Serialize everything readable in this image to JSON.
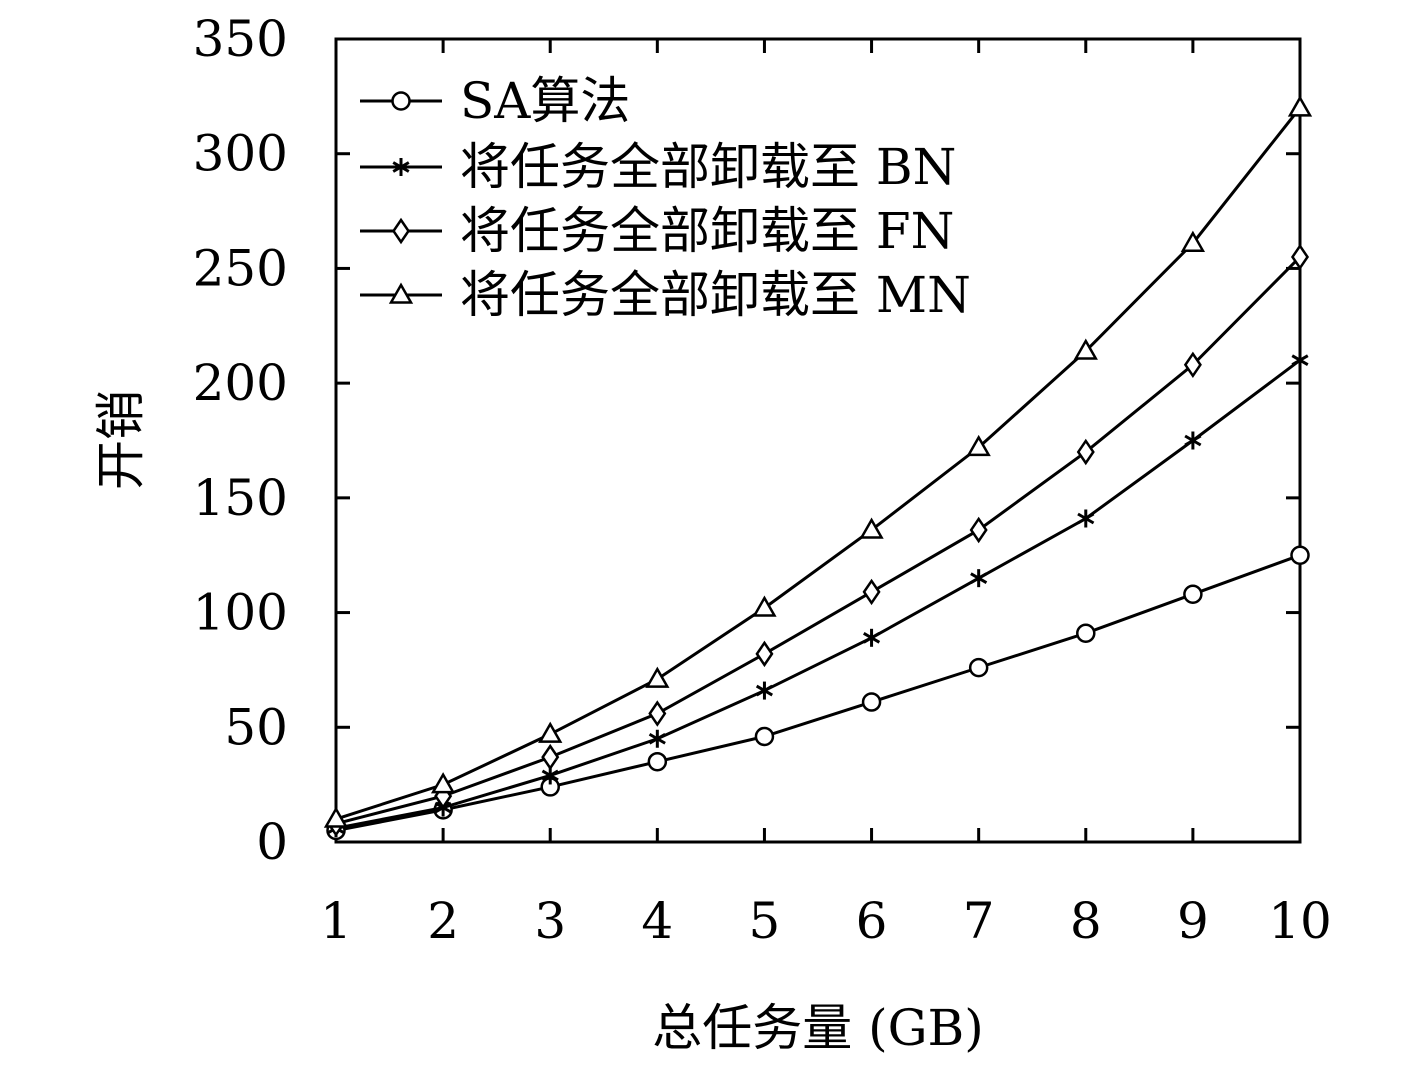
{
  "chart_data": {
    "type": "line",
    "xlabel": "总任务量 (GB)",
    "ylabel": "开销",
    "xlim": [
      1,
      10
    ],
    "ylim": [
      0,
      350
    ],
    "xticks": [
      1,
      2,
      3,
      4,
      5,
      6,
      7,
      8,
      9,
      10
    ],
    "yticks": [
      0,
      50,
      100,
      150,
      200,
      250,
      300,
      350
    ],
    "grid": false,
    "legend_position": "top-left",
    "x": [
      1,
      2,
      3,
      4,
      5,
      6,
      7,
      8,
      9,
      10
    ],
    "series": [
      {
        "name": "SA算法",
        "marker": "circle",
        "values": [
          5,
          14,
          24,
          35,
          46,
          61,
          76,
          91,
          108,
          125
        ]
      },
      {
        "name": "将任务全部卸载至 BN",
        "marker": "star",
        "values": [
          6,
          15,
          29,
          45,
          66,
          89,
          115,
          141,
          175,
          210
        ]
      },
      {
        "name": "将任务全部卸载至 FN",
        "marker": "diamond",
        "values": [
          8,
          20,
          37,
          56,
          82,
          109,
          136,
          170,
          208,
          255
        ]
      },
      {
        "name": "将任务全部卸载至 MN",
        "marker": "triangle",
        "values": [
          10,
          25,
          47,
          71,
          102,
          136,
          172,
          214,
          261,
          320
        ]
      }
    ]
  }
}
